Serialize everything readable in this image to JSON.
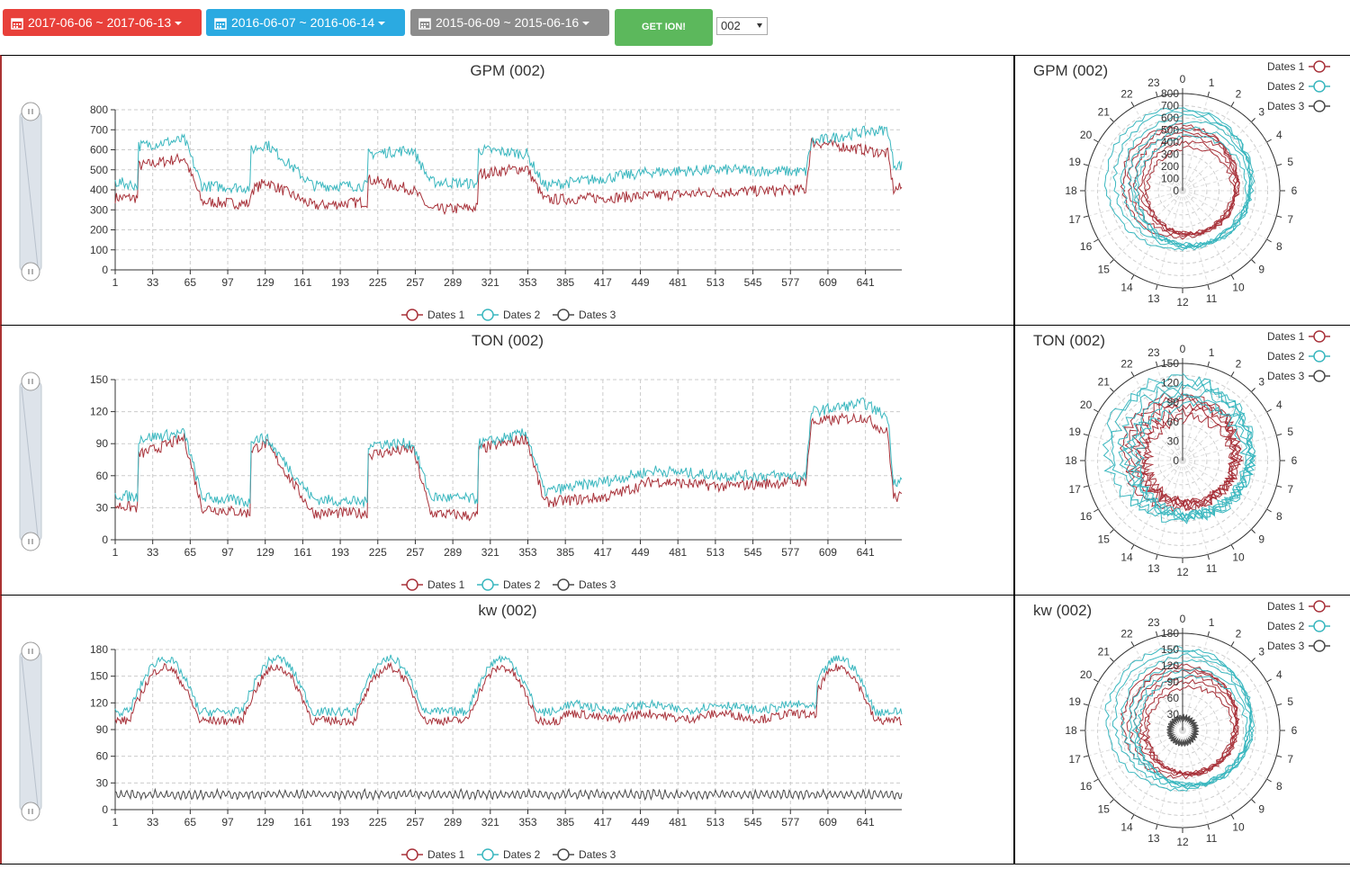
{
  "toolbar": {
    "date_ranges": [
      {
        "label": "2017-06-06 ~ 2017-06-13",
        "color": "#e8403a"
      },
      {
        "label": "2016-06-07 ~ 2016-06-14",
        "color": "#2baae1"
      },
      {
        "label": "2015-06-09 ~ 2015-06-16",
        "color": "#8c8c8c"
      }
    ],
    "go_label": "GET ION!",
    "device_select": "002"
  },
  "colors": {
    "dates1": "#a8323a",
    "dates2": "#3ab7bf",
    "dates3": "#4a4a4a"
  },
  "legend": [
    "Dates 1",
    "Dates 2",
    "Dates 3"
  ],
  "charts": [
    {
      "key": "gpm",
      "title": "GPM (002)",
      "polar_title": "GPM (002)"
    },
    {
      "key": "ton",
      "title": "TON (002)",
      "polar_title": "TON (002)"
    },
    {
      "key": "kw",
      "title": "kw (002)",
      "polar_title": "kw (002)"
    }
  ],
  "chart_data": [
    {
      "type": "line",
      "title": "GPM (002)",
      "x_ticks": [
        "1",
        "33",
        "65",
        "97",
        "129",
        "161",
        "193",
        "225",
        "257",
        "289",
        "321",
        "353",
        "385",
        "417",
        "449",
        "481",
        "513",
        "545",
        "577",
        "609",
        "641"
      ],
      "y_ticks": [
        "0",
        "100",
        "200",
        "300",
        "400",
        "500",
        "600",
        "700",
        "800"
      ],
      "ylim": [
        0,
        800
      ],
      "x_range": [
        1,
        672
      ],
      "series": [
        {
          "name": "Dates 1",
          "segments": [
            [
              1,
              360
            ],
            [
              20,
              360
            ],
            [
              22,
              520
            ],
            [
              60,
              560
            ],
            [
              75,
              340
            ],
            [
              115,
              330
            ],
            [
              118,
              400
            ],
            [
              130,
              440
            ],
            [
              170,
              320
            ],
            [
              215,
              340
            ],
            [
              218,
              450
            ],
            [
              255,
              400
            ],
            [
              270,
              300
            ],
            [
              310,
              310
            ],
            [
              312,
              480
            ],
            [
              352,
              510
            ],
            [
              367,
              350
            ],
            [
              460,
              370
            ],
            [
              520,
              390
            ],
            [
              590,
              400
            ],
            [
              595,
              640
            ],
            [
              640,
              600
            ],
            [
              660,
              580
            ],
            [
              665,
              400
            ],
            [
              672,
              410
            ]
          ]
        },
        {
          "name": "Dates 2",
          "segments": [
            [
              1,
              440
            ],
            [
              20,
              420
            ],
            [
              22,
              620
            ],
            [
              60,
              650
            ],
            [
              75,
              420
            ],
            [
              115,
              410
            ],
            [
              118,
              600
            ],
            [
              130,
              630
            ],
            [
              170,
              420
            ],
            [
              215,
              420
            ],
            [
              218,
              580
            ],
            [
              255,
              600
            ],
            [
              270,
              440
            ],
            [
              310,
              430
            ],
            [
              312,
              600
            ],
            [
              352,
              580
            ],
            [
              367,
              420
            ],
            [
              460,
              490
            ],
            [
              520,
              500
            ],
            [
              590,
              490
            ],
            [
              595,
              640
            ],
            [
              640,
              690
            ],
            [
              660,
              700
            ],
            [
              665,
              530
            ],
            [
              672,
              520
            ]
          ]
        },
        {
          "name": "Dates 3",
          "segments": []
        }
      ],
      "legend": "bottom-center",
      "grid": true
    },
    {
      "type": "line",
      "title": "TON (002)",
      "x_ticks": [
        "1",
        "33",
        "65",
        "97",
        "129",
        "161",
        "193",
        "225",
        "257",
        "289",
        "321",
        "353",
        "385",
        "417",
        "449",
        "481",
        "513",
        "545",
        "577",
        "609",
        "641"
      ],
      "y_ticks": [
        "0",
        "30",
        "60",
        "90",
        "120",
        "150"
      ],
      "ylim": [
        0,
        150
      ],
      "x_range": [
        1,
        672
      ],
      "series": [
        {
          "name": "Dates 1",
          "segments": [
            [
              1,
              32
            ],
            [
              20,
              30
            ],
            [
              22,
              80
            ],
            [
              60,
              95
            ],
            [
              75,
              30
            ],
            [
              115,
              25
            ],
            [
              118,
              85
            ],
            [
              130,
              90
            ],
            [
              170,
              25
            ],
            [
              215,
              25
            ],
            [
              218,
              80
            ],
            [
              255,
              85
            ],
            [
              270,
              25
            ],
            [
              310,
              22
            ],
            [
              312,
              85
            ],
            [
              352,
              95
            ],
            [
              367,
              35
            ],
            [
              420,
              40
            ],
            [
              460,
              55
            ],
            [
              520,
              50
            ],
            [
              590,
              55
            ],
            [
              595,
              110
            ],
            [
              640,
              115
            ],
            [
              660,
              100
            ],
            [
              665,
              40
            ],
            [
              672,
              40
            ]
          ]
        },
        {
          "name": "Dates 2",
          "segments": [
            [
              1,
              42
            ],
            [
              20,
              40
            ],
            [
              22,
              95
            ],
            [
              60,
              100
            ],
            [
              75,
              40
            ],
            [
              115,
              35
            ],
            [
              118,
              95
            ],
            [
              130,
              95
            ],
            [
              170,
              38
            ],
            [
              215,
              35
            ],
            [
              218,
              90
            ],
            [
              255,
              90
            ],
            [
              270,
              40
            ],
            [
              310,
              38
            ],
            [
              312,
              90
            ],
            [
              352,
              100
            ],
            [
              367,
              45
            ],
            [
              420,
              55
            ],
            [
              460,
              65
            ],
            [
              520,
              60
            ],
            [
              590,
              60
            ],
            [
              595,
              120
            ],
            [
              640,
              128
            ],
            [
              660,
              115
            ],
            [
              665,
              55
            ],
            [
              672,
              55
            ]
          ]
        },
        {
          "name": "Dates 3",
          "segments": []
        }
      ],
      "legend": "bottom-center",
      "grid": true
    },
    {
      "type": "line",
      "title": "kw (002)",
      "x_ticks": [
        "1",
        "33",
        "65",
        "97",
        "129",
        "161",
        "193",
        "225",
        "257",
        "289",
        "321",
        "353",
        "385",
        "417",
        "449",
        "481",
        "513",
        "545",
        "577",
        "609",
        "641"
      ],
      "y_ticks": [
        "0",
        "30",
        "60",
        "90",
        "120",
        "150",
        "180"
      ],
      "ylim": [
        0,
        180
      ],
      "x_range": [
        1,
        672
      ],
      "series": [
        {
          "name": "Dates 1",
          "shape": "daily",
          "base": 100,
          "peak": 160,
          "tail": [
            105,
            105
          ]
        },
        {
          "name": "Dates 2",
          "shape": "daily",
          "base": 110,
          "peak": 170,
          "tail": [
            118,
            120
          ]
        },
        {
          "name": "Dates 3",
          "shape": "flat",
          "base": 17
        }
      ],
      "legend": "bottom-center",
      "grid": true
    },
    {
      "type": "polar-line",
      "title": "GPM (002)",
      "hours": [
        "0",
        "1",
        "2",
        "3",
        "4",
        "5",
        "6",
        "7",
        "8",
        "9",
        "10",
        "11",
        "12",
        "13",
        "14",
        "15",
        "16",
        "17",
        "18",
        "19",
        "20",
        "21",
        "22",
        "23"
      ],
      "r_ticks": [
        "0",
        "100",
        "200",
        "300",
        "400",
        "500",
        "600",
        "700",
        "800"
      ],
      "rlim": [
        0,
        800
      ],
      "legend": "top-right"
    },
    {
      "type": "polar-line",
      "title": "TON (002)",
      "hours": [
        "0",
        "1",
        "2",
        "3",
        "4",
        "5",
        "6",
        "7",
        "8",
        "9",
        "10",
        "11",
        "12",
        "13",
        "14",
        "15",
        "16",
        "17",
        "18",
        "19",
        "20",
        "21",
        "22",
        "23"
      ],
      "r_ticks": [
        "0",
        "30",
        "60",
        "90",
        "120",
        "150"
      ],
      "rlim": [
        0,
        150
      ],
      "legend": "top-right"
    },
    {
      "type": "polar-line",
      "title": "kw (002)",
      "hours": [
        "0",
        "1",
        "2",
        "3",
        "4",
        "5",
        "6",
        "7",
        "8",
        "9",
        "10",
        "11",
        "12",
        "13",
        "14",
        "15",
        "16",
        "17",
        "18",
        "19",
        "20",
        "21",
        "22",
        "23"
      ],
      "r_ticks": [
        "30",
        "60",
        "90",
        "120",
        "150",
        "180"
      ],
      "rlim": [
        0,
        180
      ],
      "legend": "top-right"
    }
  ]
}
